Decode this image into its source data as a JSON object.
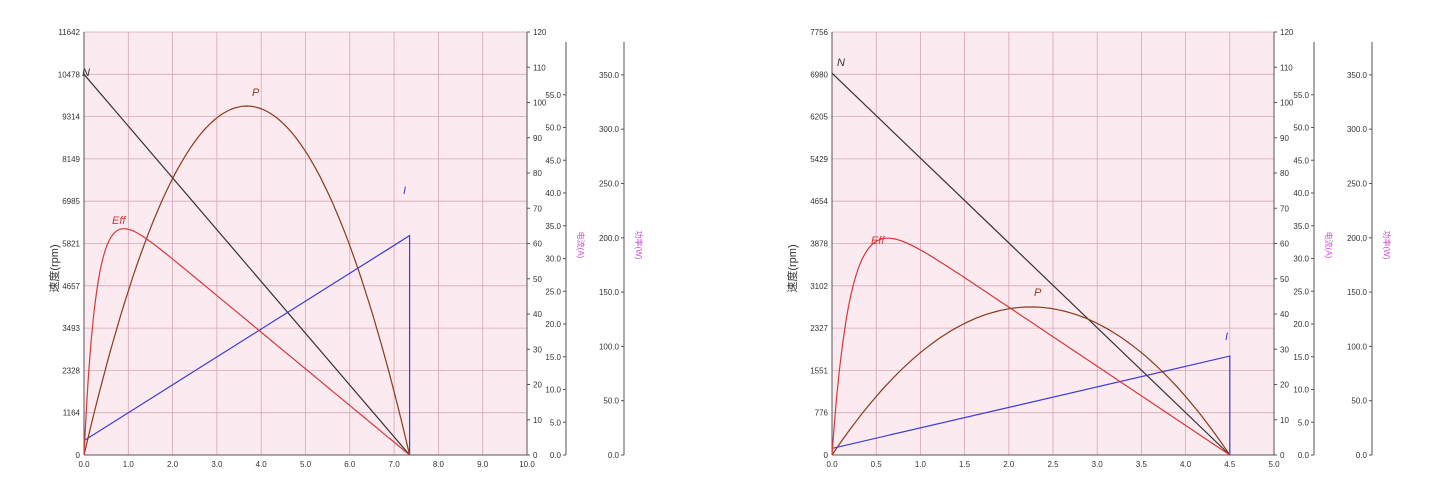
{
  "chart_data": [
    {
      "type": "line",
      "ylabel": "速度(rpm)",
      "x_ticks": [
        "0.0",
        "1.0",
        "2.0",
        "3.0",
        "4.0",
        "5.0",
        "6.0",
        "7.0",
        "8.0",
        "9.0",
        "10.0"
      ],
      "xlim": [
        0,
        10
      ],
      "y_left_ticks": [
        "0",
        "1164",
        "2328",
        "3493",
        "4657",
        "5821",
        "6985",
        "8149",
        "9314",
        "10478",
        "11642"
      ],
      "y_left_lim": [
        0,
        11642
      ],
      "y2_ticks": [
        "0",
        "10",
        "20",
        "30",
        "40",
        "50",
        "60",
        "70",
        "80",
        "90",
        "100",
        "110",
        "120"
      ],
      "y2_lim": [
        0,
        120
      ],
      "y3_ticks": [
        "0.0",
        "5.0",
        "10.0",
        "15.0",
        "20.0",
        "25.0",
        "30.0",
        "35.0",
        "40.0",
        "45.0",
        "50.0",
        "55.0"
      ],
      "y3_label": "电流(A)",
      "y4_ticks": [
        "0.0",
        "50.0",
        "100.0",
        "150.0",
        "200.0",
        "250.0",
        "300.0",
        "350.0"
      ],
      "y4_label": "功率(W)",
      "curves": [
        {
          "label": "N",
          "color": "#333333",
          "x": [
            0,
            7.35
          ],
          "y": [
            10478,
            0
          ],
          "axis": "left"
        },
        {
          "label": "I",
          "color": "#3b3bd6",
          "x": [
            0,
            7.35,
            7.35
          ],
          "y": [
            2.2,
            33.5,
            0
          ],
          "axis": "y3"
        },
        {
          "label": "P",
          "color": "#8b3a1a",
          "kind": "parabola",
          "x_end": 7.35,
          "peak": 99,
          "axis": "y2"
        },
        {
          "label": "Eff",
          "color": "#d43a3a",
          "kind": "eff",
          "x_end": 7.35,
          "peak_x": 1.2,
          "peak": 63,
          "axis": "y2"
        }
      ]
    },
    {
      "type": "line",
      "ylabel": "速度(rpm)",
      "x_ticks": [
        "0.0",
        "0.5",
        "1.0",
        "1.5",
        "2.0",
        "2.5",
        "3.0",
        "3.5",
        "4.0",
        "4.5",
        "5.0"
      ],
      "xlim": [
        0,
        5
      ],
      "y_left_ticks": [
        "0",
        "776",
        "1551",
        "2327",
        "3102",
        "3878",
        "4654",
        "5429",
        "6205",
        "6980",
        "7756"
      ],
      "y_left_lim": [
        0,
        7756
      ],
      "y2_ticks": [
        "0",
        "10",
        "20",
        "30",
        "40",
        "50",
        "60",
        "70",
        "80",
        "90",
        "100",
        "110",
        "120"
      ],
      "y2_lim": [
        0,
        120
      ],
      "y3_ticks": [
        "0.0",
        "5.0",
        "10.0",
        "15.0",
        "20.0",
        "25.0",
        "30.0",
        "35.0",
        "40.0",
        "45.0",
        "50.0",
        "55.0"
      ],
      "y3_label": "电流(A)",
      "y4_ticks": [
        "0.0",
        "50.0",
        "100.0",
        "150.0",
        "200.0",
        "250.0",
        "300.0",
        "350.0"
      ],
      "y4_label": "功率(W)",
      "curves": [
        {
          "label": "N",
          "color": "#333333",
          "x": [
            0,
            4.5
          ],
          "y": [
            7000,
            0
          ],
          "axis": "left"
        },
        {
          "label": "I",
          "color": "#3b3bd6",
          "x": [
            0,
            4.5,
            4.5
          ],
          "y": [
            1.0,
            15.1,
            0
          ],
          "axis": "y3"
        },
        {
          "label": "P",
          "color": "#8b3a1a",
          "kind": "parabola",
          "x_end": 4.5,
          "peak": 42,
          "axis": "y2"
        },
        {
          "label": "Eff",
          "color": "#d43a3a",
          "kind": "eff",
          "x_end": 4.5,
          "peak_x": 0.9,
          "peak": 59.5,
          "axis": "y2"
        }
      ]
    }
  ]
}
